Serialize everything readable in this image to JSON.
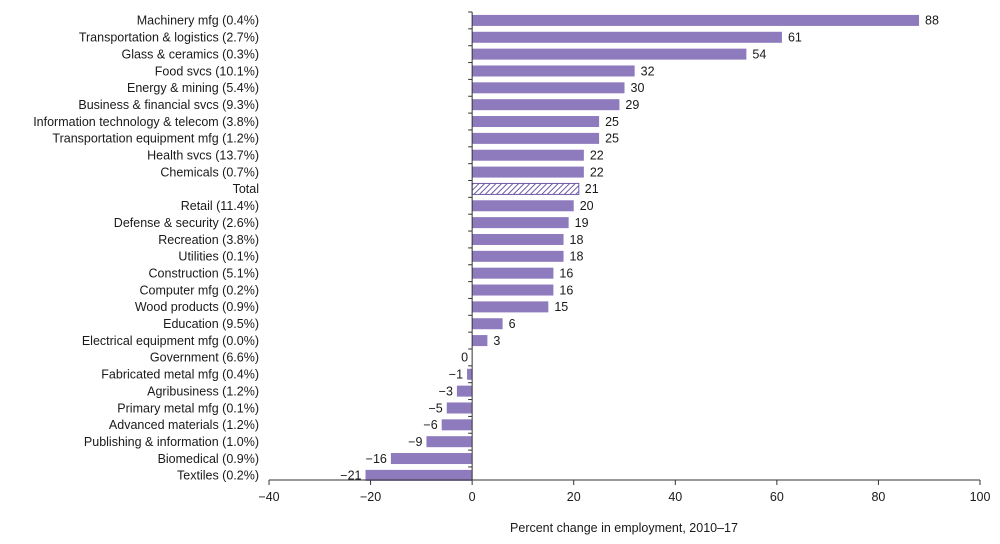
{
  "chart_data": {
    "type": "bar",
    "orientation": "horizontal",
    "categories": [
      "Machinery mfg (0.4%)",
      "Transportation & logistics (2.7%)",
      "Glass & ceramics (0.3%)",
      "Food svcs (10.1%)",
      "Energy & mining (5.4%)",
      "Business & financial svcs (9.3%)",
      "Information technology & telecom (3.8%)",
      "Transportation equipment mfg (1.2%)",
      "Health svcs (13.7%)",
      "Chemicals (0.7%)",
      "Total",
      "Retail (11.4%)",
      "Defense & security (2.6%)",
      "Recreation (3.8%)",
      "Utilities (0.1%)",
      "Construction (5.1%)",
      "Computer mfg (0.2%)",
      "Wood products (0.9%)",
      "Education (9.5%)",
      "Electrical equipment mfg (0.0%)",
      "Government (6.6%)",
      "Fabricated metal mfg (0.4%)",
      "Agribusiness (1.2%)",
      "Primary metal mfg (0.1%)",
      "Advanced materials (1.2%)",
      "Publishing & information (1.0%)",
      "Biomedical (0.9%)",
      "Textiles (0.2%)"
    ],
    "values": [
      88,
      61,
      54,
      32,
      30,
      29,
      25,
      25,
      22,
      22,
      21,
      20,
      19,
      18,
      18,
      16,
      16,
      15,
      6,
      3,
      0,
      -1,
      -3,
      -5,
      -6,
      -9,
      -16,
      -21
    ],
    "value_labels": [
      "88",
      "61",
      "54",
      "32",
      "30",
      "29",
      "25",
      "25",
      "22",
      "22",
      "21",
      "20",
      "19",
      "18",
      "18",
      "16",
      "16",
      "15",
      "6",
      "3",
      "0",
      "−1",
      "−3",
      "−5",
      "−6",
      "−9",
      "−16",
      "−21"
    ],
    "highlight_category": "Total",
    "xlim": [
      -40,
      100
    ],
    "xticks": [
      -40,
      -20,
      0,
      20,
      40,
      60,
      80,
      100
    ],
    "xtick_labels": [
      "−40",
      "−20",
      "0",
      "20",
      "40",
      "60",
      "80",
      "100"
    ],
    "xlabel": "Percent change in employment, 2010–17",
    "ylabel": "",
    "title": "",
    "grid": false,
    "colors": {
      "bar": "#8e7bbd",
      "total_hatch": "#6e5aa6",
      "axis": "#333333"
    }
  }
}
